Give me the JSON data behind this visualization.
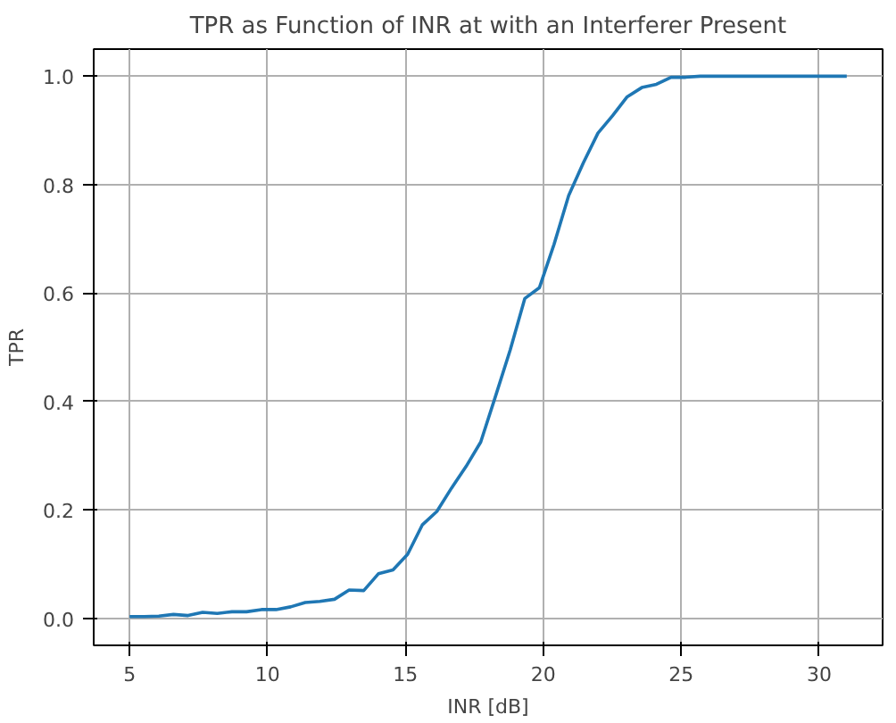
{
  "chart_data": {
    "type": "line",
    "title": "TPR as Function of INR at with an Interferer Present",
    "xlabel": "INR [dB]",
    "ylabel": "TPR",
    "x": [
      5.0,
      5.53,
      6.06,
      6.59,
      7.12,
      7.65,
      8.18,
      8.71,
      9.24,
      9.78,
      10.31,
      10.84,
      11.37,
      11.9,
      12.43,
      12.96,
      13.49,
      14.02,
      14.55,
      15.08,
      15.61,
      16.14,
      16.67,
      17.2,
      17.73,
      18.27,
      18.8,
      19.33,
      19.86,
      20.39,
      20.92,
      21.45,
      21.98,
      22.51,
      23.04,
      23.57,
      24.1,
      24.63,
      25.16,
      25.69,
      26.22,
      26.76,
      27.29,
      27.82,
      28.35,
      28.88,
      29.41,
      29.94,
      30.47,
      31.0
    ],
    "series": [
      {
        "color": "#1f77b4",
        "values": [
          0.003,
          0.003,
          0.004,
          0.007,
          0.005,
          0.011,
          0.009,
          0.012,
          0.012,
          0.016,
          0.016,
          0.021,
          0.029,
          0.031,
          0.035,
          0.052,
          0.051,
          0.082,
          0.089,
          0.118,
          0.172,
          0.197,
          0.24,
          0.28,
          0.325,
          0.41,
          0.495,
          0.59,
          0.61,
          0.69,
          0.78,
          0.84,
          0.895,
          0.927,
          0.962,
          0.979,
          0.985,
          0.998,
          0.998,
          1.0,
          1.0,
          1.0,
          1.0,
          1.0,
          1.0,
          1.0,
          1.0,
          1.0,
          1.0,
          1.0
        ]
      }
    ],
    "xlim": [
      3.7,
      32.3
    ],
    "ylim": [
      -0.05,
      1.05
    ],
    "xticks": [
      5,
      10,
      15,
      20,
      25,
      30
    ],
    "yticks": [
      {
        "value": 0,
        "label": "0.0"
      },
      {
        "value": 0.2,
        "label": "0.2"
      },
      {
        "value": 0.4,
        "label": "0.4"
      },
      {
        "value": 0.6,
        "label": "0.6"
      },
      {
        "value": 0.8,
        "label": "0.8"
      },
      {
        "value": 1.0,
        "label": "1.0"
      }
    ],
    "grid": true,
    "marker": "none",
    "line_style": "solid"
  }
}
